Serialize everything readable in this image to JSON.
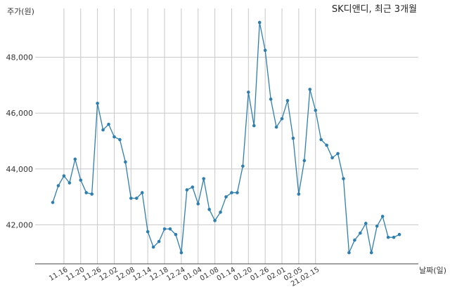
{
  "chart_data": {
    "type": "line",
    "title": "SK디앤디, 최근 3개월",
    "ylabel": "주가(원)",
    "xlabel": "날짜(일)",
    "ylim": [
      40600,
      49500
    ],
    "yticks": [
      42000,
      44000,
      46000,
      48000
    ],
    "ytick_labels": [
      "42,000",
      "44,000",
      "46,000",
      "48,000"
    ],
    "xtick_labels": [
      "11.16",
      "11.20",
      "11.26",
      "12.02",
      "12.08",
      "12.14",
      "12.18",
      "12.24",
      "01.04",
      "01.08",
      "01.14",
      "01.20",
      "01.26",
      "02.01",
      "02.05",
      "21.02.15"
    ],
    "xtick_index": [
      2,
      5,
      8,
      11,
      14,
      17,
      20,
      23,
      26,
      29,
      32,
      35,
      38,
      41,
      44,
      47
    ],
    "grid": true,
    "series": [
      {
        "color": "#2e7fb0",
        "values": [
          42800,
          43400,
          43750,
          43500,
          44350,
          43600,
          43150,
          43100,
          46350,
          45400,
          45600,
          45150,
          45050,
          44250,
          42950,
          42950,
          43150,
          41750,
          41200,
          41400,
          41850,
          41850,
          41650,
          41000,
          43250,
          43350,
          42750,
          43650,
          42550,
          42150,
          42450,
          43000,
          43150,
          43150,
          44100,
          46750,
          45550,
          49250,
          48250,
          46500,
          45500,
          45800,
          46450,
          45100,
          43100,
          44300,
          46850,
          46100,
          45050,
          44850,
          44400,
          44550,
          43650,
          41000,
          41450,
          41700,
          42050,
          41000,
          41950,
          42300,
          41550,
          41550,
          41650
        ]
      }
    ]
  }
}
